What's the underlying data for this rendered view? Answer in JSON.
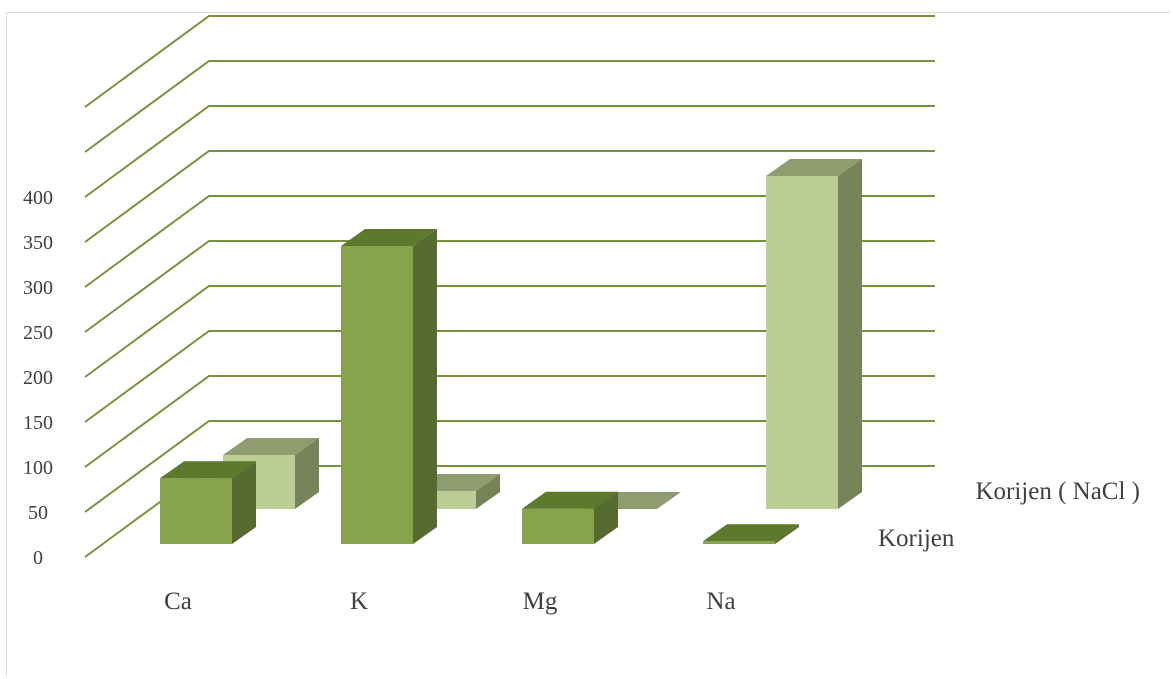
{
  "chart_data": {
    "type": "bar",
    "categories": [
      "Ca",
      "K",
      "Mg",
      "Na"
    ],
    "series": [
      {
        "name": "Korijen",
        "values": [
          92,
          350,
          58,
          22
        ],
        "color": "#87a34b"
      },
      {
        "name": "Korijen ( NaCl )",
        "values": [
          60,
          20,
          0,
          370
        ],
        "color": "#bccd96"
      }
    ],
    "yticks": [
      0,
      50,
      100,
      150,
      200,
      250,
      300,
      350,
      400
    ],
    "ylim": [
      0,
      500
    ],
    "grid": true,
    "colors": {
      "grid": "#76923c",
      "front_dark_side": "#556b2f",
      "front_top": "#5c7a2c",
      "back_side": "#758357",
      "back_top": "#8e9c70"
    },
    "title": "",
    "xlabel": "",
    "ylabel": ""
  }
}
